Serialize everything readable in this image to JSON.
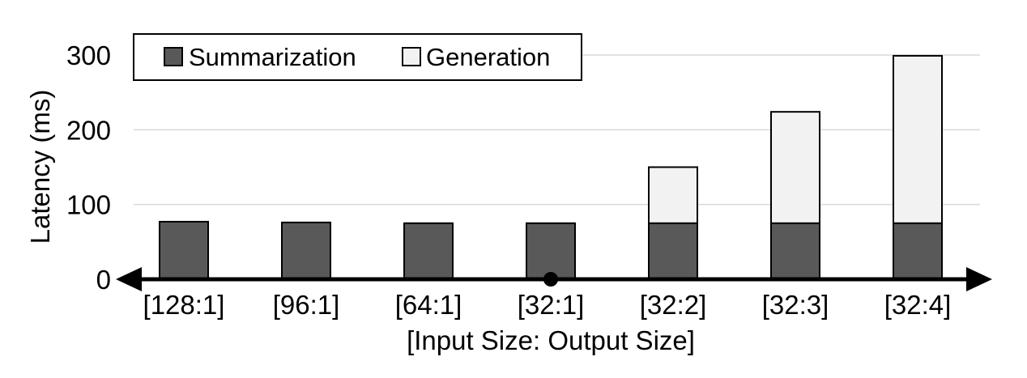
{
  "chart_data": {
    "type": "bar",
    "stacked": true,
    "categories": [
      "[128:1]",
      "[96:1]",
      "[64:1]",
      "[32:1]",
      "[32:2]",
      "[32:3]",
      "[32:4]"
    ],
    "series": [
      {
        "name": "Summarization",
        "values": [
          77,
          76,
          75,
          75,
          75,
          75,
          75
        ],
        "color": "#595959"
      },
      {
        "name": "Generation",
        "values": [
          0,
          0,
          0,
          0,
          75,
          149,
          224
        ],
        "color": "#f2f2f2"
      }
    ],
    "title": "",
    "xlabel": "[Input Size: Output Size]",
    "ylabel": "Latency (ms)",
    "ylim": [
      0,
      300
    ],
    "yticks": [
      "0",
      "100",
      "200",
      "300"
    ],
    "grid": true,
    "legend_position": "top-left",
    "marked_category": "[32:1]"
  }
}
